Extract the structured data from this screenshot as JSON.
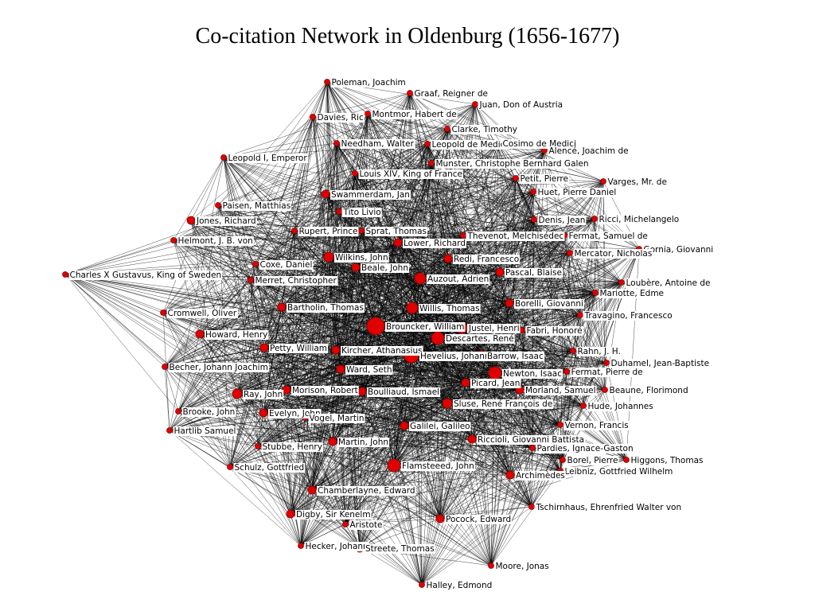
{
  "title": "Co-citation Network in Oldenburg (1656-1677)",
  "node_color": "#e00000",
  "edge_color": "#000000",
  "nodes": [
    "Poleman, Joachim",
    "Graaf, Reigner de",
    "Juan, Don of Austria",
    "Davies, Ric",
    "Montmor, Habert de",
    "Clarke, Timothy",
    "Needham, Walter",
    "Leopold de Medici",
    "Cosimo de Medici",
    "Alencé, Joachim de",
    "Leopold I, Emperor",
    "Munster, Christophe Bernhard Galen",
    "Louis XIV, King of France",
    "Petit, Pierre",
    "Varges, Mr. de",
    "Huet, Pierre Daniel",
    "Swammerdam, Jan",
    "Paisen, Matthias",
    "Tito Livio",
    "Ricci, Michelangelo",
    "Jones, Richard",
    "Denis, Jean",
    "Rupert, Prince",
    "Sprat, Thomas",
    "Helmont, J. B. von",
    "Fermat, Samuel de",
    "Thevenot, Melchisédec",
    "Gornia, Giovanni",
    "Lower, Richard",
    "Wilkins, John",
    "Coxe, Daniel",
    "Beale, John",
    "Redi, Francesco",
    "Mercator, Nicholas",
    "Charles X Gustavus, King of Sweden",
    "Auzout, Adrien",
    "Pascal, Blaise",
    "Merret, Christopher",
    "Loubère, Antoine de",
    "Mariotte, Edme",
    "Bartholin, Thomas",
    "Willis, Thomas",
    "Borelli, Giovanni",
    "Travagino, Francesco",
    "Cromwell, Oliver",
    "Brouncker, William",
    "Justel, Henri",
    "Howard, Henry",
    "Descartes, René",
    "Fabri, Honoré",
    "Petty, William",
    "Kircher, Athanasius",
    "Hevelius, Johannes",
    "Barrow, Isaac",
    "Rahn, J. H.",
    "Becher, Johann Joachim",
    "Duhamel, Jean-Baptiste",
    "Ward, Seth",
    "Newton, Isaac",
    "Fermat, Pierre de",
    "Ray, John",
    "Morison, Robert",
    "Boulliaud, Ismael",
    "Picard, Jean",
    "Morland, Samuel",
    "Beaune, Florimond",
    "Brooke, John",
    "Evelyn, John",
    "Sluse, René François de",
    "Hude, Johannes",
    "Vogel, Martin",
    "Hartlib Samuel",
    "Galilei, Galileo",
    "Vernon, Francis",
    "Riccioli, Giovanni Battista",
    "Stubbe, Henry",
    "Martin, John",
    "Pardies, Ignace-Gaston",
    "Borel, Pierre",
    "Higgons, Thomas",
    "Schulz, Gottfried",
    "Flamsteeed, John",
    "Leibniz, Gottfried Wilhelm",
    "Archimèdes",
    "Chamberlayne, Edward",
    "Tschirnhaus, Ehrenfried Walter von",
    "Digby, Sir Kenelm",
    "Aristote",
    "Pocock, Edward",
    "Hecker, Johann",
    "Streete, Thomas",
    "Moore, Jonas",
    "Halley, Edmond"
  ]
}
